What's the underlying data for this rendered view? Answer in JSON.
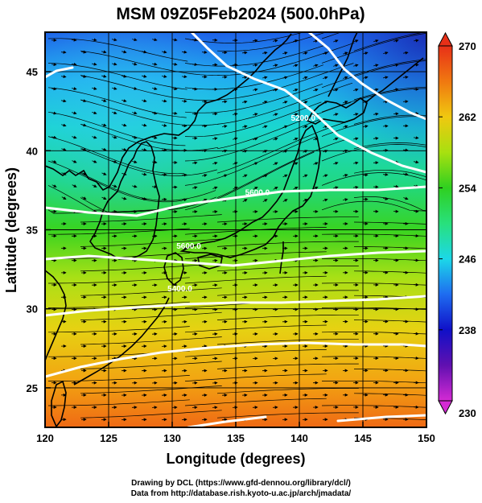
{
  "title": "MSM 09Z05Feb2024 (500.0hPa)",
  "xlabel": "Longitude (degrees)",
  "ylabel": "Latitude  (degrees)",
  "credits": [
    "Drawing by DCL (https://www.gfd-dennou.org/library/dcl/)",
    "Data from http://database.rish.kyoto-u.ac.jp/arch/jmadata/"
  ],
  "chart_data": {
    "type": "heatmap",
    "xlim": [
      120,
      150
    ],
    "ylim": [
      22.5,
      47.5
    ],
    "x_ticks": [
      120,
      125,
      130,
      135,
      140,
      145,
      150
    ],
    "y_ticks": [
      25,
      30,
      35,
      40,
      45
    ],
    "grid": true,
    "colorbar": {
      "min": 230,
      "max": 270,
      "ticks": [
        270,
        262,
        254,
        246,
        238,
        230
      ],
      "colors": [
        "#d42ad4",
        "#6010b0",
        "#1010c8",
        "#1e6cf0",
        "#1cd8e8",
        "#28e07c",
        "#2fd020",
        "#a8e010",
        "#f0c810",
        "#f07810",
        "#e83018"
      ]
    },
    "contour_labels": [
      {
        "text": "5600.0",
        "lon": 136.7,
        "lat": 37.2
      },
      {
        "text": "5600.0",
        "lon": 131.3,
        "lat": 33.8
      },
      {
        "text": "5400.0",
        "lon": 130.6,
        "lat": 31.1
      },
      {
        "text": "5200.0",
        "lon": 140.3,
        "lat": 41.9
      }
    ]
  }
}
